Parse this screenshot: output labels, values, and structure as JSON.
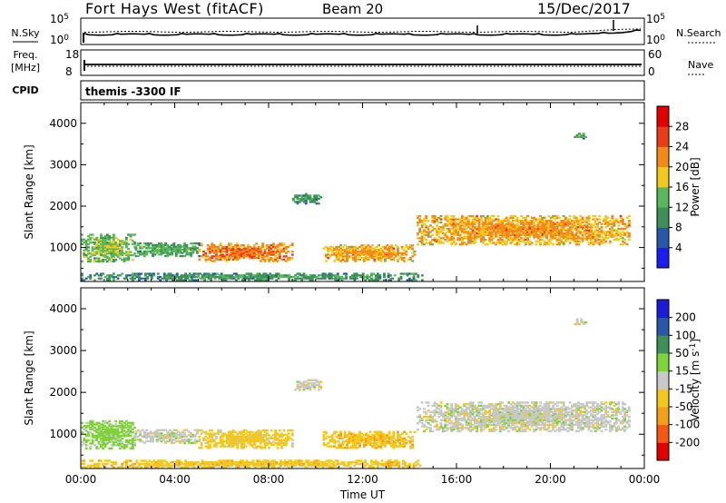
{
  "header": {
    "site": "Fort Hays West (fitACF)",
    "beam": "Beam 20",
    "date": "15/Dec/2017"
  },
  "side_labels": {
    "nsky": "N.Sky",
    "nsearch": "N.Search",
    "freq": "Freq.",
    "mhz": "[MHz]",
    "nave": "Nave",
    "cpid": "CPID"
  },
  "noise_panel": {
    "left_ticks": [
      "10^5",
      "10^0"
    ],
    "right_ticks": [
      "10^5",
      "10^0"
    ]
  },
  "freq_panel": {
    "left_ticks": [
      "18",
      "8"
    ],
    "right_ticks": [
      "60",
      "0"
    ]
  },
  "cpid_panel": {
    "label": "themis -3300 IF"
  },
  "colors": {
    "power_scale": [
      "#1c1cf2",
      "#2a58a8",
      "#3f8f5a",
      "#59b85c",
      "#f2c81f",
      "#f28a1a",
      "#ea3c18",
      "#e00000"
    ],
    "velocity_scale": [
      "#e00000",
      "#f25a14",
      "#f2a01c",
      "#f2c81f",
      "#c8c8c8",
      "#7ed338",
      "#3f8f5a",
      "#2a58a8",
      "#1c1cd8"
    ]
  },
  "chart_data": [
    {
      "type": "heatmap",
      "name": "Power",
      "ylabel": "Slant Range [km]",
      "ylim": [
        180,
        4500
      ],
      "yticks": [
        "4000",
        "3000",
        "2000",
        "1000"
      ],
      "xticks": [
        "00:00",
        "04:00",
        "08:00",
        "12:00",
        "16:00",
        "20:00",
        "00:00"
      ],
      "colorbar_label": "Power [dB]",
      "colorbar_ticks": [
        "28",
        "24",
        "20",
        "16",
        "12",
        "8",
        "4"
      ],
      "colorbar_range": [
        0,
        32
      ],
      "regions": [
        {
          "t0": 0.0,
          "t1": 2.3,
          "r0": 650,
          "r1": 1300,
          "level": 16
        },
        {
          "t0": 2.3,
          "t1": 5.0,
          "r0": 780,
          "r1": 1100,
          "level": 14
        },
        {
          "t0": 5.0,
          "t1": 9.0,
          "r0": 660,
          "r1": 1080,
          "level": 24
        },
        {
          "t0": 9.0,
          "t1": 10.2,
          "r0": 2050,
          "r1": 2280,
          "level": 12
        },
        {
          "t0": 10.3,
          "t1": 14.2,
          "r0": 660,
          "r1": 1050,
          "level": 22
        },
        {
          "t0": 14.3,
          "t1": 23.3,
          "r0": 1060,
          "r1": 1780,
          "level": 22
        },
        {
          "t0": 0.0,
          "t1": 14.5,
          "r0": 200,
          "r1": 360,
          "level": 12
        },
        {
          "t0": 21.0,
          "t1": 21.5,
          "r0": 3620,
          "r1": 3760,
          "level": 14
        }
      ]
    },
    {
      "type": "heatmap",
      "name": "Velocity",
      "ylabel": "Slant Range [km]",
      "ylim": [
        180,
        4500
      ],
      "yticks": [
        "4000",
        "3000",
        "2000",
        "1000"
      ],
      "xticks": [
        "00:00",
        "04:00",
        "08:00",
        "12:00",
        "16:00",
        "20:00",
        "00:00"
      ],
      "xlabel": "Time UT",
      "colorbar_label": "Velocity [m s^-1]",
      "colorbar_ticks": [
        "200",
        "100",
        "50",
        "15",
        "-15",
        "-50",
        "-100",
        "-200"
      ],
      "colorbar_range": [
        -250,
        250
      ],
      "regions": [
        {
          "t0": 0.0,
          "t1": 2.3,
          "r0": 650,
          "r1": 1300,
          "level": 30
        },
        {
          "t0": 2.3,
          "t1": 5.0,
          "r0": 780,
          "r1": 1100,
          "level": 0
        },
        {
          "t0": 5.0,
          "t1": 9.0,
          "r0": 660,
          "r1": 1080,
          "level": -30
        },
        {
          "t0": 9.0,
          "t1": 10.2,
          "r0": 2050,
          "r1": 2280,
          "level": 0
        },
        {
          "t0": 10.3,
          "t1": 14.2,
          "r0": 660,
          "r1": 1050,
          "level": -40
        },
        {
          "t0": 14.3,
          "t1": 23.3,
          "r0": 1060,
          "r1": 1780,
          "level": 0
        },
        {
          "t0": 0.0,
          "t1": 14.5,
          "r0": 200,
          "r1": 360,
          "level": -35
        },
        {
          "t0": 21.0,
          "t1": 21.5,
          "r0": 3620,
          "r1": 3760,
          "level": 0
        }
      ]
    }
  ]
}
